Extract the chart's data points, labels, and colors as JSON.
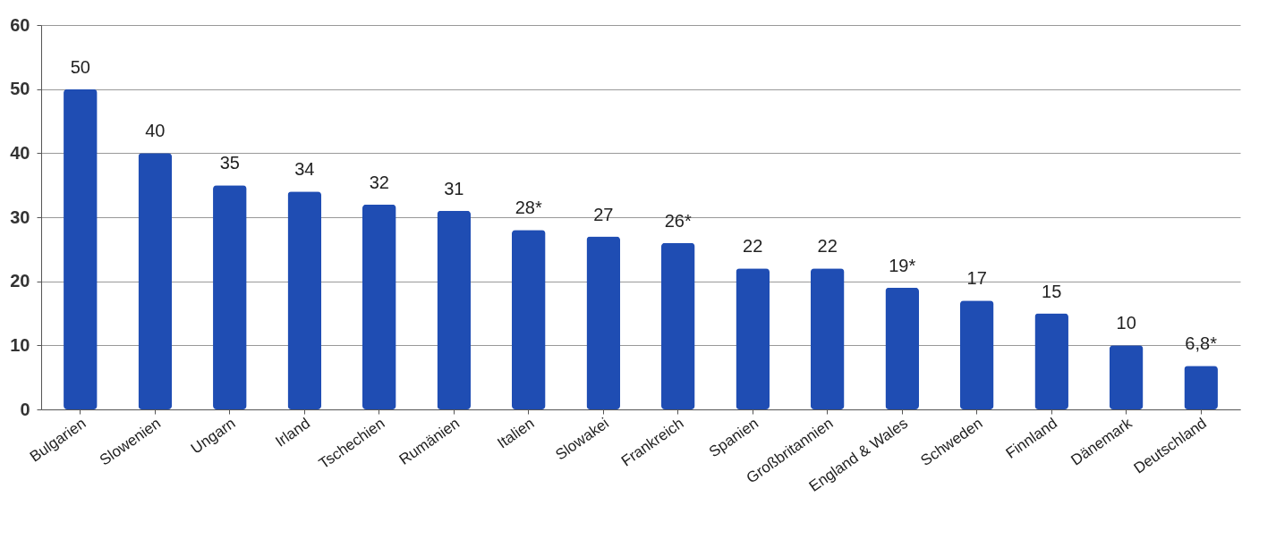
{
  "chart_data": {
    "type": "bar",
    "categories": [
      "Bulgarien",
      "Slowenien",
      "Ungarn",
      "Irland",
      "Tschechien",
      "Rumänien",
      "Italien",
      "Slowakei",
      "Frankreich",
      "Spanien",
      "Großbritannien",
      "England & Wales",
      "Schweden",
      "Finnland",
      "Dänemark",
      "Deutschland"
    ],
    "values": [
      50,
      40,
      35,
      34,
      32,
      31,
      28,
      27,
      26,
      22,
      22,
      19,
      17,
      15,
      10,
      6.8
    ],
    "value_labels": [
      "50",
      "40",
      "35",
      "34",
      "32",
      "31",
      "28*",
      "27",
      "26*",
      "22",
      "22",
      "19*",
      "17",
      "15",
      "10",
      "6,8*"
    ],
    "color": "#1f4db3",
    "ylim": [
      0,
      60
    ],
    "yticks": [
      0,
      10,
      20,
      30,
      40,
      50,
      60
    ],
    "grid": "y"
  }
}
